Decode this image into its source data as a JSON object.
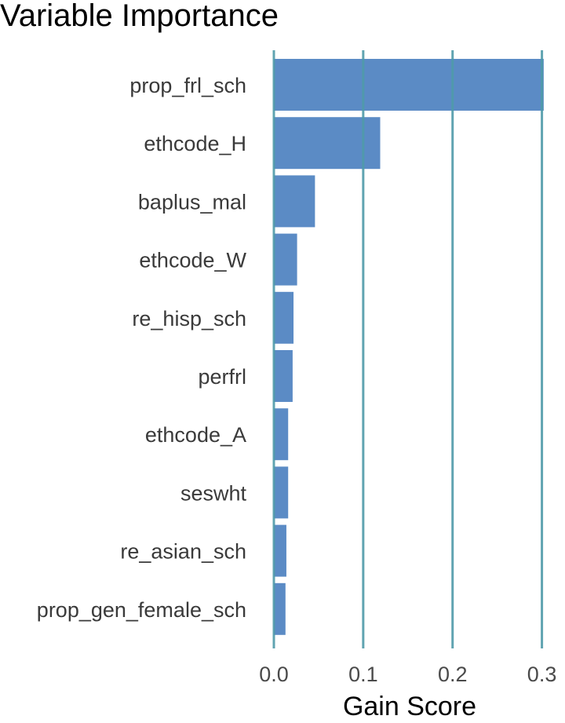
{
  "chart_data": {
    "type": "bar",
    "orientation": "horizontal",
    "title": "Variable Importance",
    "xlabel": "Gain Score",
    "ylabel": "",
    "categories": [
      "prop_frl_sch",
      "ethcode_H",
      "baplus_mal",
      "ethcode_W",
      "re_hisp_sch",
      "perfrl",
      "ethcode_A",
      "seswht",
      "re_asian_sch",
      "prop_gen_female_sch"
    ],
    "values": [
      0.302,
      0.119,
      0.046,
      0.026,
      0.022,
      0.021,
      0.016,
      0.016,
      0.014,
      0.013
    ],
    "xticks": [
      "0.0",
      "0.1",
      "0.2",
      "0.3"
    ],
    "xtick_values": [
      0.0,
      0.1,
      0.2,
      0.3
    ],
    "xlim": [
      0.0,
      0.303
    ],
    "grid": "vertical",
    "colors": {
      "bar": "#5b8bc5",
      "grid": "#4f9aa8"
    }
  }
}
